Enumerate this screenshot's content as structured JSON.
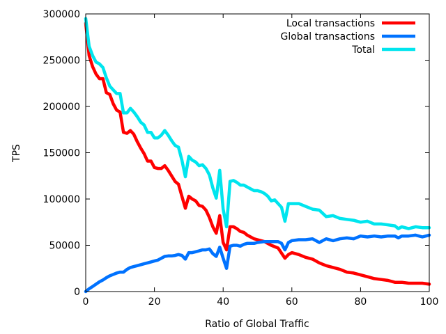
{
  "chart_data": {
    "type": "line",
    "title": "",
    "xlabel": "Ratio of Global Traffic",
    "ylabel": "TPS",
    "xlim": [
      0,
      100
    ],
    "ylim": [
      0,
      300000
    ],
    "xticks": [
      0,
      20,
      40,
      60,
      80,
      100
    ],
    "yticks": [
      0,
      50000,
      100000,
      150000,
      200000,
      250000,
      300000
    ],
    "legend_position": "top-right",
    "grid": false,
    "series": [
      {
        "name": "Local transactions",
        "color": "#ff0000",
        "x": [
          0,
          1,
          2,
          3,
          4,
          5,
          6,
          7,
          8,
          9,
          10,
          11,
          12,
          13,
          14,
          15,
          16,
          17,
          18,
          19,
          20,
          21,
          22,
          23,
          24,
          25,
          26,
          27,
          28,
          29,
          30,
          31,
          32,
          33,
          34,
          35,
          36,
          37,
          38,
          39,
          40,
          41,
          42,
          43,
          44,
          45,
          46,
          47,
          48,
          49,
          50,
          52,
          54,
          56,
          58,
          59,
          60,
          62,
          64,
          66,
          68,
          70,
          72,
          74,
          76,
          78,
          80,
          82,
          84,
          86,
          88,
          90,
          92,
          94,
          96,
          98,
          100
        ],
        "values": [
          290000,
          255000,
          243000,
          235000,
          230000,
          230000,
          215000,
          213000,
          203000,
          196000,
          194000,
          172000,
          171000,
          174000,
          170000,
          162000,
          155000,
          149000,
          141000,
          141000,
          134000,
          133000,
          133000,
          136000,
          131000,
          125000,
          119000,
          116000,
          103000,
          90000,
          103000,
          100000,
          98000,
          93000,
          92000,
          88000,
          80000,
          70000,
          63000,
          82000,
          53000,
          45000,
          70000,
          70000,
          68000,
          65000,
          64000,
          61000,
          59000,
          57000,
          56000,
          54000,
          50000,
          47000,
          36000,
          40000,
          42000,
          40000,
          37000,
          35000,
          31000,
          28000,
          26000,
          24000,
          21000,
          20000,
          18000,
          16000,
          14000,
          13000,
          12000,
          10000,
          10000,
          9000,
          9000,
          9000,
          8000
        ]
      },
      {
        "name": "Global transactions",
        "color": "#0072ff",
        "x": [
          0,
          1,
          2,
          3,
          4,
          5,
          6,
          7,
          8,
          9,
          10,
          11,
          12,
          13,
          14,
          15,
          16,
          17,
          18,
          19,
          20,
          21,
          22,
          23,
          24,
          25,
          26,
          27,
          28,
          29,
          30,
          31,
          32,
          33,
          34,
          35,
          36,
          37,
          38,
          39,
          40,
          41,
          42,
          43,
          44,
          45,
          46,
          47,
          48,
          49,
          50,
          52,
          54,
          56,
          57,
          58,
          59,
          60,
          62,
          64,
          66,
          68,
          70,
          72,
          74,
          76,
          78,
          80,
          82,
          84,
          86,
          88,
          90,
          91,
          92,
          94,
          96,
          98,
          100
        ],
        "values": [
          0,
          3000,
          5500,
          8000,
          10500,
          12500,
          15000,
          17000,
          18500,
          20000,
          21000,
          21000,
          24000,
          26000,
          27000,
          28000,
          29000,
          30000,
          31000,
          32000,
          33000,
          34000,
          36000,
          38000,
          38500,
          38500,
          39000,
          40000,
          39000,
          35000,
          42000,
          42000,
          43000,
          44000,
          45000,
          45000,
          46000,
          41000,
          38000,
          48000,
          36000,
          25000,
          49000,
          50000,
          50000,
          49000,
          51000,
          52000,
          52000,
          52000,
          53000,
          54000,
          54000,
          54000,
          52000,
          45000,
          53000,
          55000,
          56000,
          56000,
          57000,
          53000,
          57000,
          55000,
          57000,
          58000,
          57000,
          60000,
          59000,
          60000,
          59000,
          60000,
          60000,
          58000,
          60000,
          60000,
          61000,
          59000,
          61000
        ]
      },
      {
        "name": "Total",
        "color": "#00e5ee",
        "x": [
          0,
          1,
          2,
          3,
          4,
          5,
          6,
          7,
          8,
          9,
          10,
          11,
          12,
          13,
          14,
          15,
          16,
          17,
          18,
          19,
          20,
          21,
          22,
          23,
          24,
          25,
          26,
          27,
          28,
          29,
          30,
          31,
          32,
          33,
          34,
          35,
          36,
          37,
          38,
          39,
          40,
          41,
          42,
          43,
          44,
          45,
          46,
          47,
          48,
          49,
          50,
          51,
          52,
          53,
          54,
          55,
          56,
          57,
          58,
          59,
          60,
          62,
          64,
          66,
          68,
          70,
          72,
          74,
          76,
          78,
          80,
          82,
          84,
          86,
          88,
          90,
          91,
          92,
          94,
          96,
          98,
          100
        ],
        "values": [
          295000,
          265000,
          255000,
          248000,
          246000,
          242000,
          231000,
          222000,
          218000,
          214000,
          214000,
          193000,
          193000,
          198000,
          194000,
          189000,
          183000,
          180000,
          172000,
          172000,
          166000,
          166000,
          169000,
          174000,
          169000,
          163000,
          158000,
          156000,
          142000,
          124000,
          146000,
          142000,
          140000,
          136000,
          137000,
          133000,
          126000,
          112000,
          101000,
          131000,
          89000,
          70000,
          119000,
          120000,
          118000,
          115000,
          115000,
          113000,
          111000,
          109000,
          109000,
          108000,
          106000,
          103000,
          98000,
          99000,
          95000,
          91000,
          76000,
          95000,
          95000,
          95000,
          92000,
          89000,
          88000,
          81000,
          82000,
          79000,
          78000,
          77000,
          75000,
          76000,
          73000,
          73000,
          72000,
          71000,
          68000,
          70000,
          68000,
          70000,
          69000,
          69000
        ]
      }
    ]
  }
}
